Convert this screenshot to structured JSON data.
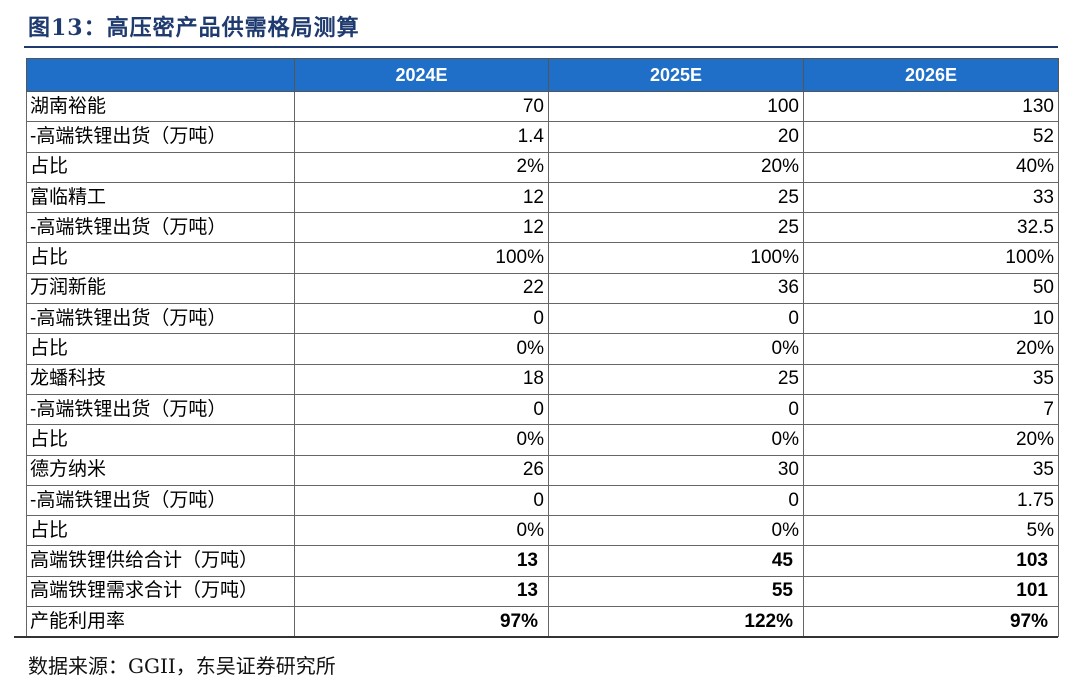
{
  "title": "图13：高压密产品供需格局测算",
  "table": {
    "headers": [
      "",
      "2024E",
      "2025E",
      "2026E"
    ],
    "rows": [
      {
        "label": "湖南裕能",
        "values": [
          "70",
          "100",
          "130"
        ],
        "bold": false
      },
      {
        "label": "-高端铁锂出货（万吨）",
        "values": [
          "1.4",
          "20",
          "52"
        ],
        "bold": false
      },
      {
        "label": "占比",
        "values": [
          "2%",
          "20%",
          "40%"
        ],
        "bold": false
      },
      {
        "label": "富临精工",
        "values": [
          "12",
          "25",
          "33"
        ],
        "bold": false
      },
      {
        "label": "-高端铁锂出货（万吨）",
        "values": [
          "12",
          "25",
          "32.5"
        ],
        "bold": false
      },
      {
        "label": "占比",
        "values": [
          "100%",
          "100%",
          "100%"
        ],
        "bold": false
      },
      {
        "label": "万润新能",
        "values": [
          "22",
          "36",
          "50"
        ],
        "bold": false
      },
      {
        "label": "-高端铁锂出货（万吨）",
        "values": [
          "0",
          "0",
          "10"
        ],
        "bold": false
      },
      {
        "label": "占比",
        "values": [
          "0%",
          "0%",
          "20%"
        ],
        "bold": false
      },
      {
        "label": "龙蟠科技",
        "values": [
          "18",
          "25",
          "35"
        ],
        "bold": false
      },
      {
        "label": "-高端铁锂出货（万吨）",
        "values": [
          "0",
          "0",
          "7"
        ],
        "bold": false
      },
      {
        "label": "占比",
        "values": [
          "0%",
          "0%",
          "20%"
        ],
        "bold": false
      },
      {
        "label": "德方纳米",
        "values": [
          "26",
          "30",
          "35"
        ],
        "bold": false
      },
      {
        "label": "-高端铁锂出货（万吨）",
        "values": [
          "0",
          "0",
          "1.75"
        ],
        "bold": false
      },
      {
        "label": "占比",
        "values": [
          "0%",
          "0%",
          "5%"
        ],
        "bold": false
      },
      {
        "label": "高端铁锂供给合计（万吨）",
        "values": [
          "13",
          "45",
          "103"
        ],
        "bold": true
      },
      {
        "label": "高端铁锂需求合计（万吨）",
        "values": [
          "13",
          "55",
          "101"
        ],
        "bold": true
      },
      {
        "label": "产能利用率",
        "values": [
          "97%",
          "122%",
          "97%"
        ],
        "bold": true
      }
    ]
  },
  "source": "数据来源：GGII，东吴证券研究所",
  "colors": {
    "header_bg": "#1f6fc9",
    "header_text": "#ffffff",
    "title_text": "#1e3a6e"
  }
}
